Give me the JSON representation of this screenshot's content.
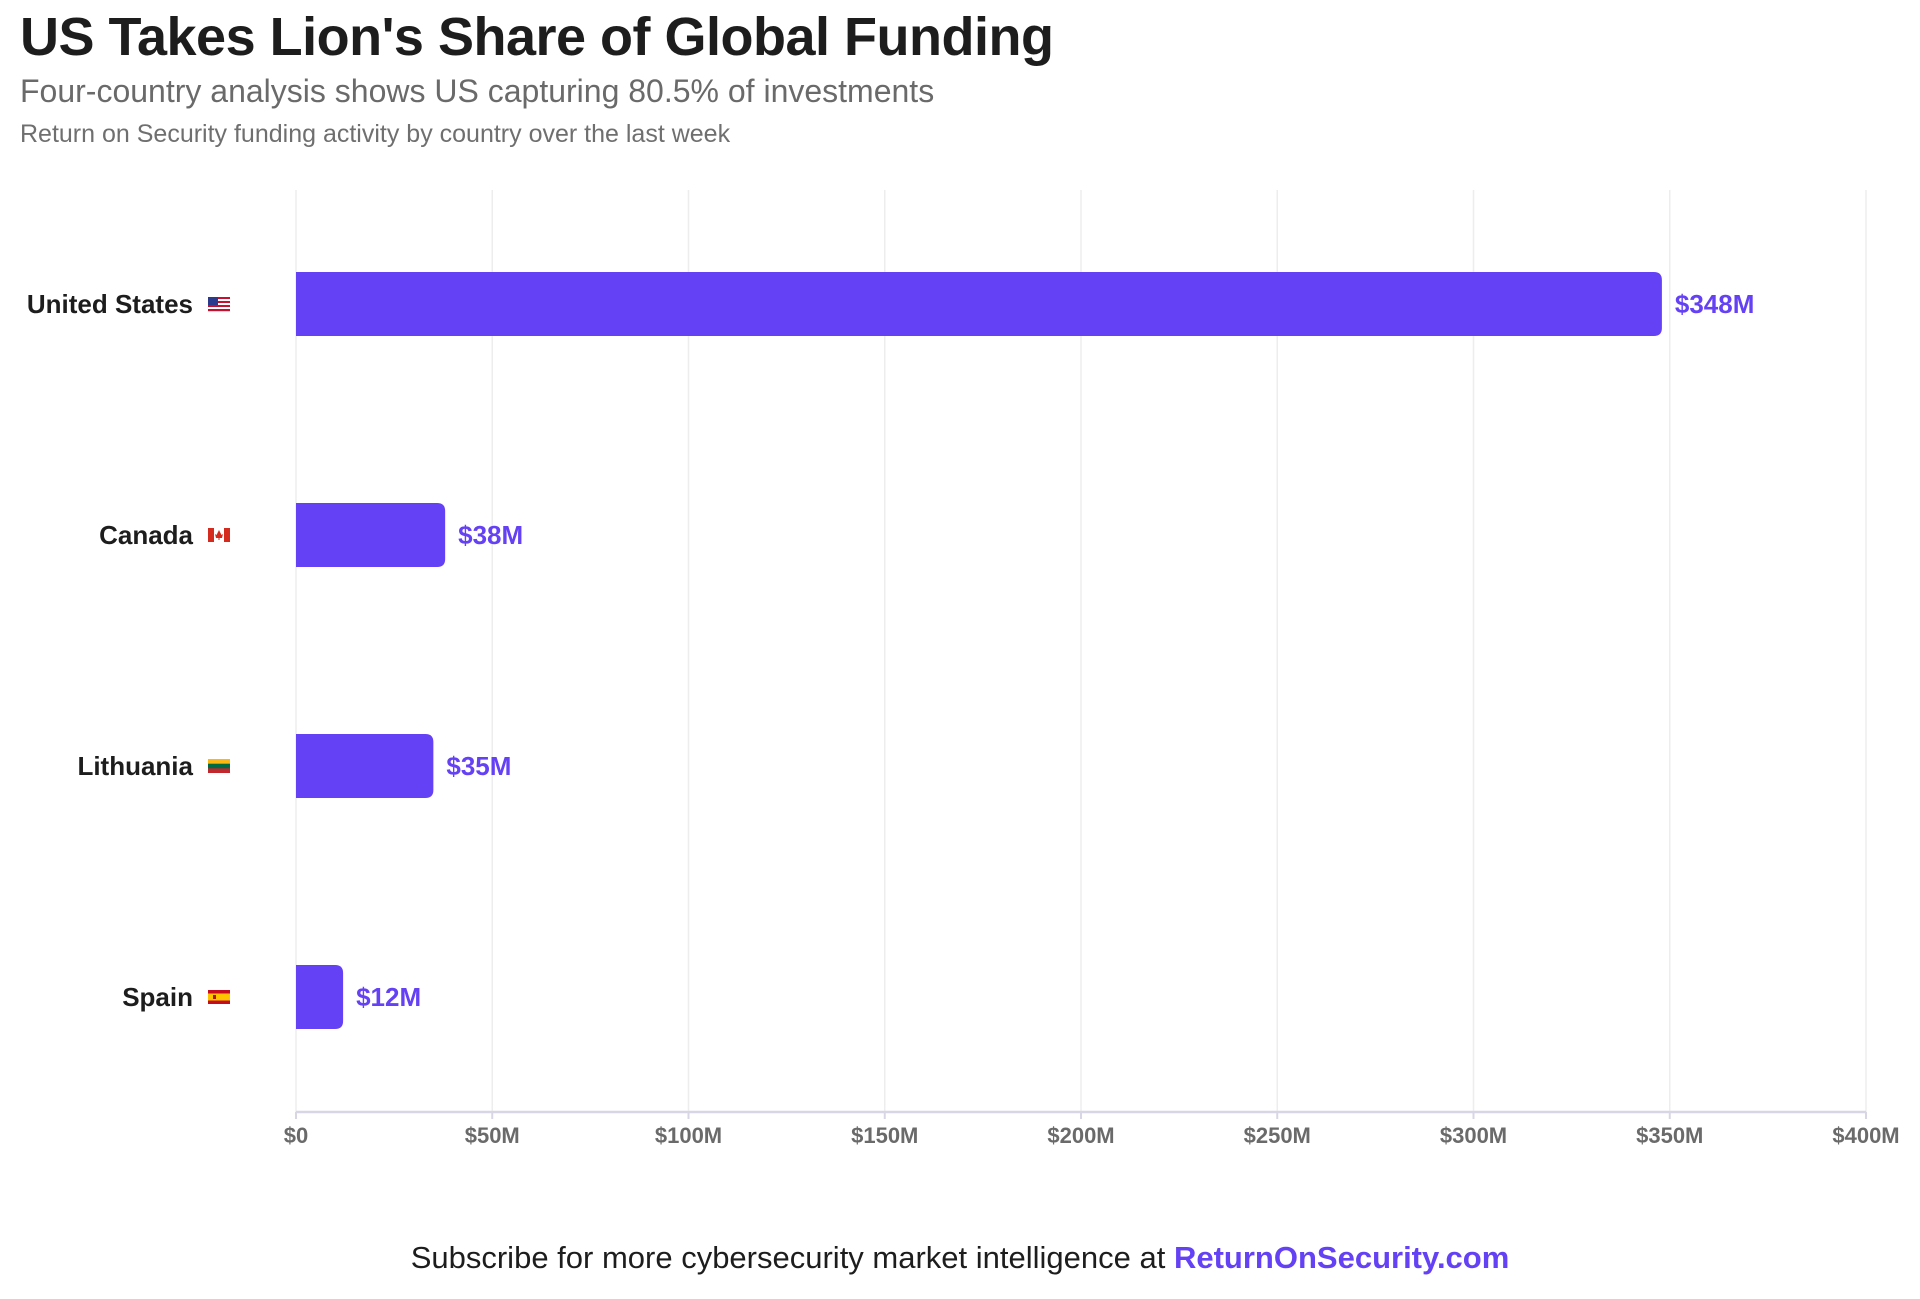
{
  "header": {
    "title": "US Takes Lion's Share of Global Funding",
    "subtitle": "Four-country analysis shows US capturing 80.5% of investments",
    "description": "Return on Security funding activity by country over the last week"
  },
  "footer": {
    "text": "Subscribe for more cybersecurity market intelligence at ",
    "link_text": "ReturnOnSecurity.com"
  },
  "colors": {
    "bar": "#6541f5",
    "value_label": "#6541f5",
    "grid": "#ededed",
    "axis": "#d8d6e4",
    "tick_label": "#6a6a6a"
  },
  "chart_data": {
    "type": "bar",
    "orientation": "horizontal",
    "title": "US Takes Lion's Share of Global Funding",
    "subtitle": "Four-country analysis shows US capturing 80.5% of investments",
    "categories": [
      "United States",
      "Canada",
      "Lithuania",
      "Spain"
    ],
    "flags": [
      "us-flag-icon",
      "ca-flag-icon",
      "lt-flag-icon",
      "es-flag-icon"
    ],
    "values": [
      348,
      38,
      35,
      12
    ],
    "value_labels": [
      "$348M",
      "$38M",
      "$35M",
      "$12M"
    ],
    "unit": "$M",
    "xlim": [
      0,
      400
    ],
    "xticks": [
      0,
      50,
      100,
      150,
      200,
      250,
      300,
      350,
      400
    ],
    "xtick_labels": [
      "$0",
      "$50M",
      "$100M",
      "$150M",
      "$200M",
      "$250M",
      "$300M",
      "$350M",
      "$400M"
    ],
    "xlabel": "",
    "ylabel": "",
    "grid": true,
    "legend": "none"
  }
}
